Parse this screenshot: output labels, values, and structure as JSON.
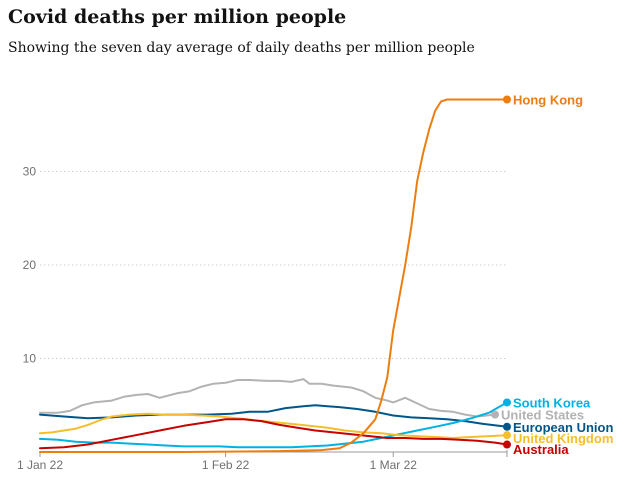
{
  "title": "Covid deaths per million people",
  "subtitle": "Showing the seven day average of daily deaths per million people",
  "chart_data": {
    "type": "line",
    "xlabel": "",
    "ylabel": "",
    "x_range": [
      "2022-01-01",
      "2022-03-20"
    ],
    "x_ticks": [
      {
        "label": "1 Jan 22",
        "date": "2022-01-01"
      },
      {
        "label": "1 Feb 22",
        "date": "2022-02-01"
      },
      {
        "label": "1 Mar 22",
        "date": "2022-03-01"
      }
    ],
    "ylim": [
      0,
      40
    ],
    "y_ticks": [
      10,
      20,
      30
    ],
    "grid": true,
    "legend": "direct labels at line ends",
    "series": [
      {
        "name": "United States",
        "color": "#b3b3b3",
        "points": [
          [
            "2022-01-01",
            4.2
          ],
          [
            "2022-01-04",
            4.2
          ],
          [
            "2022-01-06",
            4.4
          ],
          [
            "2022-01-08",
            5.0
          ],
          [
            "2022-01-10",
            5.3
          ],
          [
            "2022-01-13",
            5.5
          ],
          [
            "2022-01-15",
            5.9
          ],
          [
            "2022-01-17",
            6.1
          ],
          [
            "2022-01-19",
            6.2
          ],
          [
            "2022-01-21",
            5.8
          ],
          [
            "2022-01-24",
            6.3
          ],
          [
            "2022-01-26",
            6.5
          ],
          [
            "2022-01-28",
            7.0
          ],
          [
            "2022-01-30",
            7.3
          ],
          [
            "2022-02-01",
            7.4
          ],
          [
            "2022-02-03",
            7.7
          ],
          [
            "2022-02-05",
            7.7
          ],
          [
            "2022-02-08",
            7.6
          ],
          [
            "2022-02-10",
            7.6
          ],
          [
            "2022-02-12",
            7.5
          ],
          [
            "2022-02-14",
            7.8
          ],
          [
            "2022-02-15",
            7.3
          ],
          [
            "2022-02-17",
            7.3
          ],
          [
            "2022-02-19",
            7.1
          ],
          [
            "2022-02-22",
            6.9
          ],
          [
            "2022-02-24",
            6.5
          ],
          [
            "2022-02-26",
            5.8
          ],
          [
            "2022-02-28",
            5.5
          ],
          [
            "2022-03-01",
            5.3
          ],
          [
            "2022-03-03",
            5.8
          ],
          [
            "2022-03-05",
            5.2
          ],
          [
            "2022-03-07",
            4.6
          ],
          [
            "2022-03-09",
            4.4
          ],
          [
            "2022-03-11",
            4.3
          ],
          [
            "2022-03-13",
            4.0
          ],
          [
            "2022-03-15",
            3.8
          ],
          [
            "2022-03-18",
            4.0
          ]
        ]
      },
      {
        "name": "European Union",
        "color": "#005689",
        "points": [
          [
            "2022-01-01",
            4.0
          ],
          [
            "2022-01-05",
            3.8
          ],
          [
            "2022-01-09",
            3.6
          ],
          [
            "2022-01-13",
            3.7
          ],
          [
            "2022-01-17",
            3.9
          ],
          [
            "2022-01-21",
            4.0
          ],
          [
            "2022-01-25",
            4.0
          ],
          [
            "2022-01-29",
            4.0
          ],
          [
            "2022-02-02",
            4.1
          ],
          [
            "2022-02-05",
            4.3
          ],
          [
            "2022-02-08",
            4.3
          ],
          [
            "2022-02-11",
            4.7
          ],
          [
            "2022-02-14",
            4.9
          ],
          [
            "2022-02-16",
            5.0
          ],
          [
            "2022-02-18",
            4.9
          ],
          [
            "2022-02-20",
            4.8
          ],
          [
            "2022-02-23",
            4.6
          ],
          [
            "2022-02-26",
            4.3
          ],
          [
            "2022-03-01",
            3.9
          ],
          [
            "2022-03-04",
            3.7
          ],
          [
            "2022-03-07",
            3.6
          ],
          [
            "2022-03-10",
            3.5
          ],
          [
            "2022-03-13",
            3.3
          ],
          [
            "2022-03-16",
            3.0
          ],
          [
            "2022-03-20",
            2.7
          ]
        ]
      },
      {
        "name": "South Korea",
        "color": "#00b2e3",
        "points": [
          [
            "2022-01-01",
            1.4
          ],
          [
            "2022-01-04",
            1.3
          ],
          [
            "2022-01-07",
            1.1
          ],
          [
            "2022-01-10",
            1.0
          ],
          [
            "2022-01-13",
            1.0
          ],
          [
            "2022-01-16",
            0.9
          ],
          [
            "2022-01-19",
            0.8
          ],
          [
            "2022-01-22",
            0.7
          ],
          [
            "2022-01-25",
            0.6
          ],
          [
            "2022-01-28",
            0.6
          ],
          [
            "2022-01-31",
            0.6
          ],
          [
            "2022-02-03",
            0.5
          ],
          [
            "2022-02-06",
            0.5
          ],
          [
            "2022-02-09",
            0.5
          ],
          [
            "2022-02-12",
            0.5
          ],
          [
            "2022-02-15",
            0.6
          ],
          [
            "2022-02-18",
            0.7
          ],
          [
            "2022-02-21",
            0.9
          ],
          [
            "2022-02-24",
            1.1
          ],
          [
            "2022-02-27",
            1.5
          ],
          [
            "2022-03-02",
            1.9
          ],
          [
            "2022-03-05",
            2.3
          ],
          [
            "2022-03-08",
            2.7
          ],
          [
            "2022-03-11",
            3.1
          ],
          [
            "2022-03-14",
            3.6
          ],
          [
            "2022-03-17",
            4.2
          ],
          [
            "2022-03-20",
            5.3
          ]
        ]
      },
      {
        "name": "United Kingdom",
        "color": "#f5be2c",
        "points": [
          [
            "2022-01-01",
            2.0
          ],
          [
            "2022-01-03",
            2.1
          ],
          [
            "2022-01-05",
            2.3
          ],
          [
            "2022-01-07",
            2.5
          ],
          [
            "2022-01-09",
            2.9
          ],
          [
            "2022-01-11",
            3.4
          ],
          [
            "2022-01-13",
            3.8
          ],
          [
            "2022-01-16",
            4.0
          ],
          [
            "2022-01-19",
            4.1
          ],
          [
            "2022-01-22",
            4.0
          ],
          [
            "2022-01-25",
            4.0
          ],
          [
            "2022-01-28",
            3.9
          ],
          [
            "2022-01-31",
            3.8
          ],
          [
            "2022-02-03",
            3.6
          ],
          [
            "2022-02-06",
            3.4
          ],
          [
            "2022-02-09",
            3.2
          ],
          [
            "2022-02-12",
            3.0
          ],
          [
            "2022-02-15",
            2.8
          ],
          [
            "2022-02-18",
            2.6
          ],
          [
            "2022-02-21",
            2.3
          ],
          [
            "2022-02-24",
            2.1
          ],
          [
            "2022-02-27",
            2.0
          ],
          [
            "2022-03-02",
            1.8
          ],
          [
            "2022-03-05",
            1.7
          ],
          [
            "2022-03-08",
            1.6
          ],
          [
            "2022-03-11",
            1.5
          ],
          [
            "2022-03-14",
            1.6
          ],
          [
            "2022-03-17",
            1.7
          ],
          [
            "2022-03-20",
            1.8
          ]
        ]
      },
      {
        "name": "Australia",
        "color": "#c70000",
        "points": [
          [
            "2022-01-01",
            0.4
          ],
          [
            "2022-01-05",
            0.5
          ],
          [
            "2022-01-09",
            0.8
          ],
          [
            "2022-01-13",
            1.3
          ],
          [
            "2022-01-17",
            1.8
          ],
          [
            "2022-01-21",
            2.3
          ],
          [
            "2022-01-25",
            2.8
          ],
          [
            "2022-01-29",
            3.2
          ],
          [
            "2022-02-01",
            3.5
          ],
          [
            "2022-02-04",
            3.5
          ],
          [
            "2022-02-07",
            3.3
          ],
          [
            "2022-02-10",
            2.9
          ],
          [
            "2022-02-13",
            2.6
          ],
          [
            "2022-02-16",
            2.3
          ],
          [
            "2022-02-19",
            2.1
          ],
          [
            "2022-02-22",
            1.9
          ],
          [
            "2022-02-25",
            1.7
          ],
          [
            "2022-02-28",
            1.5
          ],
          [
            "2022-03-03",
            1.5
          ],
          [
            "2022-03-06",
            1.4
          ],
          [
            "2022-03-09",
            1.4
          ],
          [
            "2022-03-12",
            1.3
          ],
          [
            "2022-03-15",
            1.2
          ],
          [
            "2022-03-18",
            1.0
          ],
          [
            "2022-03-20",
            0.8
          ]
        ]
      },
      {
        "name": "Hong Kong",
        "color": "#ed7d0e",
        "points": [
          [
            "2022-01-01",
            0.0
          ],
          [
            "2022-01-25",
            0.0
          ],
          [
            "2022-02-10",
            0.1
          ],
          [
            "2022-02-17",
            0.2
          ],
          [
            "2022-02-20",
            0.4
          ],
          [
            "2022-02-22",
            1.0
          ],
          [
            "2022-02-24",
            2.0
          ],
          [
            "2022-02-26",
            3.5
          ],
          [
            "2022-02-27",
            5.5
          ],
          [
            "2022-02-28",
            8.0
          ],
          [
            "2022-03-01",
            13.0
          ],
          [
            "2022-03-02",
            16.5
          ],
          [
            "2022-03-03",
            20.0
          ],
          [
            "2022-03-04",
            24.0
          ],
          [
            "2022-03-05",
            29.0
          ],
          [
            "2022-03-06",
            32.0
          ],
          [
            "2022-03-07",
            34.5
          ],
          [
            "2022-03-08",
            36.5
          ],
          [
            "2022-03-09",
            37.5
          ],
          [
            "2022-03-10",
            37.7
          ],
          [
            "2022-03-20",
            37.7
          ]
        ]
      }
    ]
  }
}
